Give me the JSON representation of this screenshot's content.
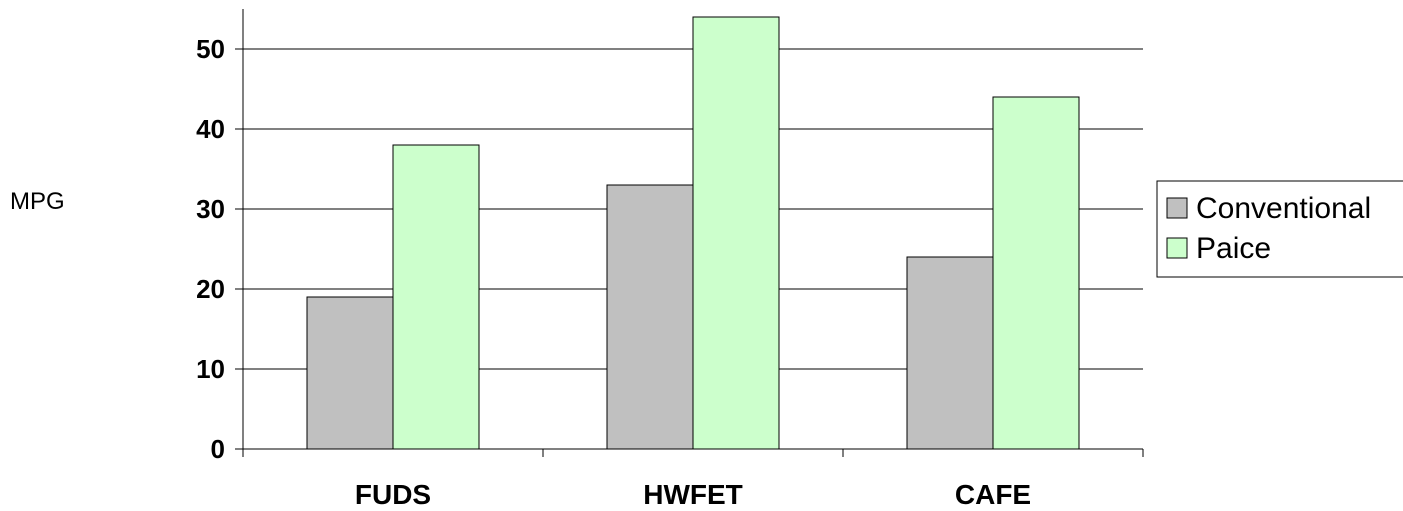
{
  "chart_data": {
    "type": "bar",
    "title": "",
    "xlabel": "",
    "ylabel": "MPG",
    "ylim": [
      0,
      55
    ],
    "yticks": [
      0,
      10,
      20,
      30,
      40,
      50
    ],
    "grid": true,
    "legend_position": "right",
    "categories": [
      "FUDS",
      "HWFET",
      "CAFE"
    ],
    "series": [
      {
        "name": "Conventional",
        "values": [
          19,
          33,
          24
        ],
        "color": "#c0c0c0"
      },
      {
        "name": "Paice",
        "values": [
          38,
          54,
          44
        ],
        "color": "#ccffcc"
      }
    ]
  }
}
